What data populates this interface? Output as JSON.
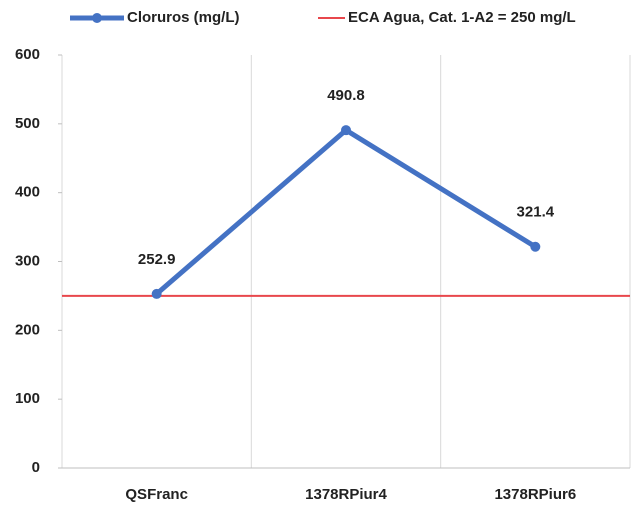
{
  "chart_data": {
    "type": "line",
    "categories": [
      "QSFranc",
      "1378RPiur4",
      "1378RPiur6"
    ],
    "series": [
      {
        "name": "Cloruros (mg/L)",
        "color": "#4472c4",
        "values": [
          252.9,
          490.8,
          321.4
        ]
      }
    ],
    "reference_line": {
      "name": "ECA Agua, Cat. 1-A2 = 250 mg/L",
      "color": "#e8474c",
      "value": 250
    },
    "ylim": [
      0,
      600
    ],
    "yticks": [
      0,
      100,
      200,
      300,
      400,
      500,
      600
    ],
    "legend": "top"
  }
}
